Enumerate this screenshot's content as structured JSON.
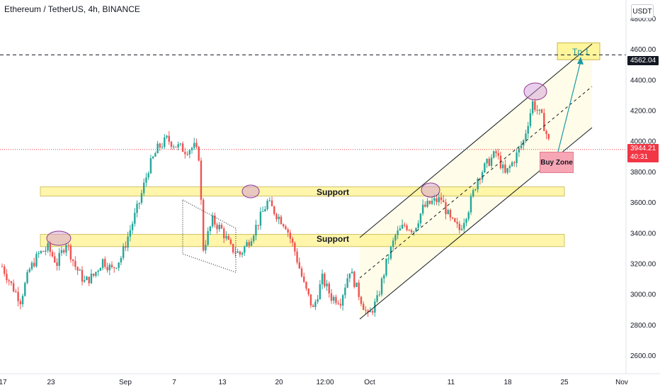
{
  "header": {
    "symbol_title": "Ethereum / TetherUS, 4h, BINANCE",
    "currency": "USDT"
  },
  "price_labels": {
    "level": "4562.04",
    "last_price": "3944.21",
    "countdown": "40:31"
  },
  "annotations": {
    "support_upper": "Support",
    "support_lower": "Support",
    "buy_zone": "Buy Zone",
    "target": "Tp 1"
  },
  "colors": {
    "up_candle": "#26a69a",
    "down_candle": "#ef5350",
    "support_fill": "#fff59d",
    "channel_fill": "#fffde7",
    "buy_zone": "#f7a6b5",
    "highlight_circle": "#ce93d8",
    "target_arrow": "#1a9aa6"
  },
  "chart_data": {
    "type": "candlestick",
    "title": "Ethereum / TetherUS, 4h, BINANCE",
    "y_axis": {
      "ticks": [
        2600,
        2800,
        3000,
        3200,
        3400,
        3600,
        3800,
        4000,
        4200,
        4400,
        4600,
        4800
      ],
      "tick_labels": [
        "2600.00",
        "2800.00",
        "3000.00",
        "3200.00",
        "3400.00",
        "3600.00",
        "3800.00",
        "4000.00",
        "4200.00",
        "4400.00",
        "4600.00",
        "4800.00"
      ],
      "range": [
        2480,
        4920
      ]
    },
    "x_axis": {
      "tick_labels": [
        "17",
        "23",
        "Sep",
        "7",
        "13",
        "20",
        "12:00",
        "Oct",
        "11",
        "18",
        "25",
        "Nov"
      ]
    },
    "price_path": [
      [
        0,
        3180
      ],
      [
        2,
        3060
      ],
      [
        4,
        2960
      ],
      [
        6,
        3160
      ],
      [
        8,
        3260
      ],
      [
        10,
        3300
      ],
      [
        12,
        3200
      ],
      [
        14,
        3340
      ],
      [
        16,
        3180
      ],
      [
        18,
        3080
      ],
      [
        20,
        3120
      ],
      [
        22,
        3220
      ],
      [
        24,
        3160
      ],
      [
        26,
        3240
      ],
      [
        28,
        3420
      ],
      [
        30,
        3600
      ],
      [
        32,
        3820
      ],
      [
        34,
        3950
      ],
      [
        36,
        4010
      ],
      [
        38,
        3970
      ],
      [
        40,
        3940
      ],
      [
        42,
        3960
      ],
      [
        43,
        3900
      ],
      [
        44,
        3300
      ],
      [
        46,
        3480
      ],
      [
        48,
        3420
      ],
      [
        50,
        3300
      ],
      [
        52,
        3260
      ],
      [
        54,
        3350
      ],
      [
        56,
        3470
      ],
      [
        58,
        3600
      ],
      [
        60,
        3520
      ],
      [
        62,
        3450
      ],
      [
        64,
        3280
      ],
      [
        66,
        3060
      ],
      [
        68,
        2900
      ],
      [
        70,
        3100
      ],
      [
        72,
        2980
      ],
      [
        74,
        2960
      ],
      [
        76,
        3160
      ],
      [
        78,
        3000
      ],
      [
        80,
        2850
      ],
      [
        82,
        2960
      ],
      [
        84,
        3200
      ],
      [
        86,
        3380
      ],
      [
        88,
        3450
      ],
      [
        90,
        3420
      ],
      [
        92,
        3560
      ],
      [
        94,
        3600
      ],
      [
        96,
        3620
      ],
      [
        98,
        3480
      ],
      [
        100,
        3420
      ],
      [
        102,
        3560
      ],
      [
        104,
        3760
      ],
      [
        106,
        3850
      ],
      [
        108,
        3920
      ],
      [
        110,
        3780
      ],
      [
        112,
        3880
      ],
      [
        114,
        4000
      ],
      [
        116,
        4250
      ],
      [
        118,
        4150
      ],
      [
        120,
        3944
      ]
    ],
    "horizontal_levels": [
      {
        "price": 4562.04,
        "style": "dashed"
      },
      {
        "price": 3944.21,
        "style": "dotted"
      }
    ],
    "support_zones": [
      {
        "label": "Support",
        "low": 3640,
        "high": 3700
      },
      {
        "label": "Support",
        "low": 3310,
        "high": 3390
      }
    ],
    "target_zone": {
      "label": "Tp 1",
      "low": 4530,
      "high": 4640
    },
    "buy_zone": {
      "label": "Buy Zone",
      "low": 3790,
      "high": 3920
    },
    "grid": false,
    "legend": "none"
  }
}
